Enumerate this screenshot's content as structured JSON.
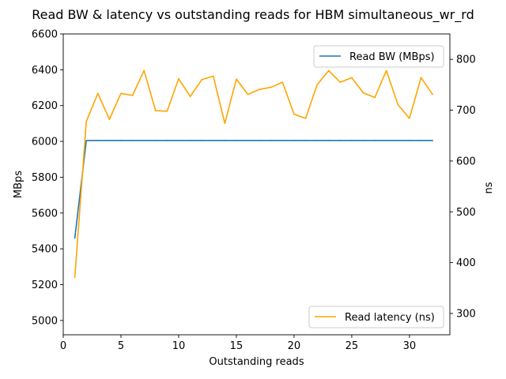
{
  "chart_data": {
    "type": "line",
    "title": "Read BW & latency vs outstanding reads for HBM simultaneous_wr_rd",
    "xlabel": "Outstanding reads",
    "ylabel_left": "MBps",
    "ylabel_right": "ns",
    "xlim": [
      0,
      33.5
    ],
    "ylim_left": [
      4920,
      6600
    ],
    "ylim_right": [
      258,
      850
    ],
    "x_ticks": [
      0,
      5,
      10,
      15,
      20,
      25,
      30
    ],
    "y_left_ticks": [
      5000,
      5200,
      5400,
      5600,
      5800,
      6000,
      6200,
      6400,
      6600
    ],
    "y_right_ticks": [
      300,
      400,
      500,
      600,
      700,
      800
    ],
    "x": [
      1,
      2,
      3,
      4,
      5,
      6,
      7,
      8,
      9,
      10,
      11,
      12,
      13,
      14,
      15,
      16,
      17,
      18,
      19,
      20,
      21,
      22,
      23,
      24,
      25,
      26,
      27,
      28,
      29,
      30,
      31,
      32
    ],
    "series": [
      {
        "name": "Read BW (MBps)",
        "axis": "left",
        "color": "#1f77b4",
        "legend_loc": "upper right",
        "values": [
          5460,
          6005,
          6005,
          6005,
          6005,
          6005,
          6005,
          6005,
          6005,
          6005,
          6005,
          6005,
          6005,
          6005,
          6005,
          6005,
          6005,
          6005,
          6005,
          6005,
          6005,
          6005,
          6005,
          6005,
          6005,
          6005,
          6005,
          6005,
          6005,
          6005,
          6005,
          6005
        ]
      },
      {
        "name": "Read latency (ns)",
        "axis": "right",
        "color": "#ffa500",
        "legend_loc": "lower right",
        "values": [
          371,
          678,
          733,
          682,
          733,
          729,
          778,
          699,
          698,
          762,
          727,
          760,
          767,
          674,
          761,
          731,
          741,
          745,
          755,
          692,
          684,
          750,
          778,
          755,
          764,
          734,
          725,
          778,
          711,
          684,
          764,
          731
        ]
      }
    ]
  }
}
